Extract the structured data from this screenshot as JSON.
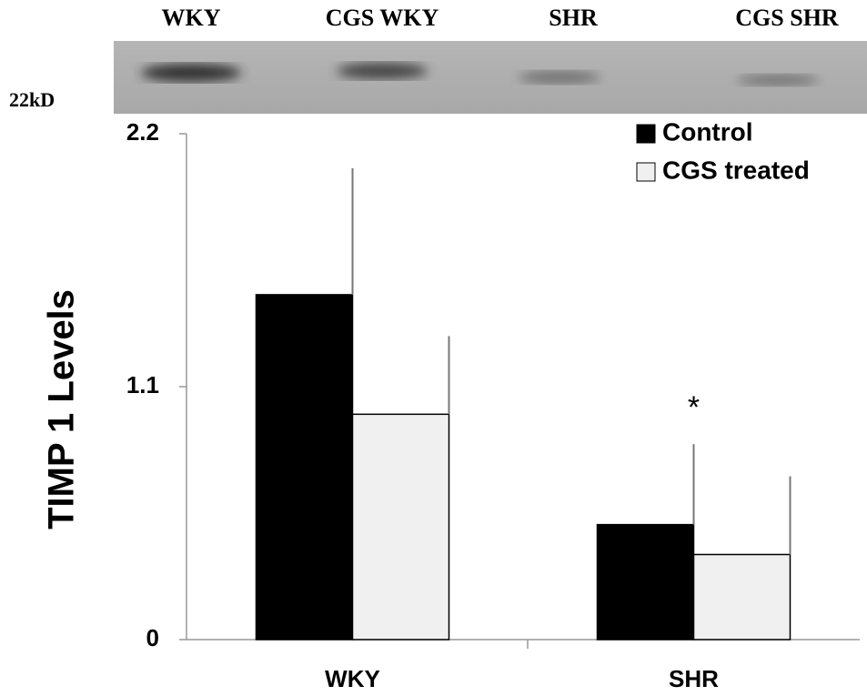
{
  "blot": {
    "lanes": [
      "WKY",
      "CGS WKY",
      "SHR",
      "CGS SHR"
    ],
    "marker": "22kD"
  },
  "chart_data": {
    "type": "bar",
    "y_label": "TIMP 1 Levels",
    "categories": [
      "WKY",
      "SHR"
    ],
    "series": [
      {
        "name": "Control",
        "color": "#000000",
        "values": [
          1.5,
          0.5
        ],
        "errors": [
          0.55,
          0.35
        ]
      },
      {
        "name": "CGS treated",
        "color": "#f0f0f0",
        "values": [
          0.98,
          0.37
        ],
        "errors": [
          0.34,
          0.34
        ]
      }
    ],
    "ylim": [
      0,
      2.2
    ],
    "yticks": [
      0,
      1.1,
      2.2
    ],
    "legend": "upper right",
    "annotations": [
      "*"
    ]
  }
}
